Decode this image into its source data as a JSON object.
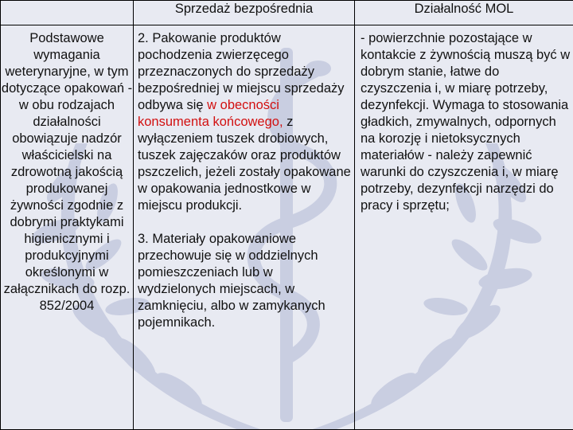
{
  "header": {
    "col2": "Sprzedaż bezpośrednia",
    "col3": "Działalność MOL"
  },
  "col1": {
    "text": "Podstawowe wymagania weterynaryjne, w tym dotyczące opakowań - w obu rodzajach działalności obowiązuje nadzór właścicielski na zdrowotną jakością produkowanej żywności zgodnie z dobrymi praktykami higienicznymi i produkcyjnymi określonymi w załącznikach do rozp. 852/2004"
  },
  "col2": {
    "p1_a": "2. Pakowanie produktów pochodzenia zwierzęcego przeznaczonych do sprzedaży bezpośredniej w miejscu sprzedaży odbywa się ",
    "p1_red": "w obecności konsumenta końcowego,",
    "p1_b": " z wyłączeniem tuszek drobiowych, tuszek zajęczaków oraz produktów pszczelich, jeżeli zostały opakowane w opakowania jednostkowe w miejscu produkcji.",
    "p2": "3. Materiały opakowaniowe przechowuje się w oddzielnych pomieszczeniach lub w wydzielonych miejscach, w zamknięciu, albo w zamykanych pojemnikach."
  },
  "col3": {
    "text": "- powierzchnie pozostające w kontakcie z żywnością muszą być w dobrym stanie, łatwe do czyszczenia i, w miarę potrzeby, dezynfekcji. Wymaga to stosowania gładkich, zmywalnych, odpornych na korozję i nietoksycznych materiałów - należy zapewnić warunki do czyszczenia i, w miarę potrzeby, dezynfekcji narzędzi  do pracy i sprzętu;"
  },
  "colors": {
    "background": "#e8eaf2",
    "watermark": "#c6cce0",
    "highlight": "#d21010",
    "border": "#000000"
  },
  "icons": [
    "laurel-wreath-watermark",
    "caduceus-watermark"
  ]
}
